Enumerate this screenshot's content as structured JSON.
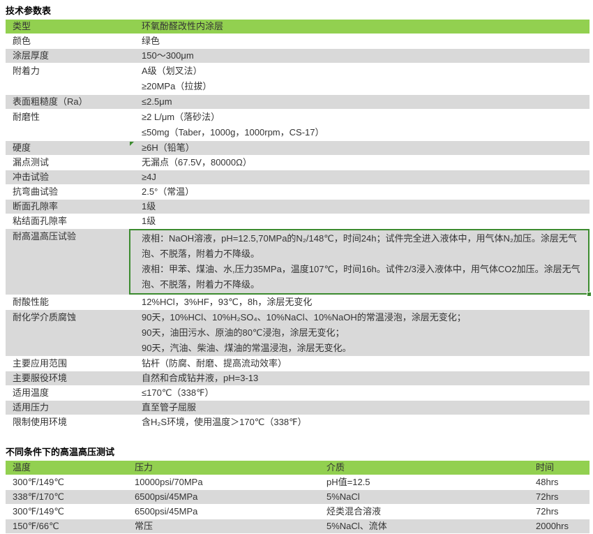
{
  "colors": {
    "header_green": "#92D050",
    "row_gray": "#D9D9D9",
    "selection_green": "#3C8B2F",
    "text": "#333333"
  },
  "table1": {
    "title": "技术参数表",
    "rows": [
      {
        "label": "类型",
        "values": [
          "环氧酚醛改性内涂层"
        ],
        "style": "green"
      },
      {
        "label": "颜色",
        "values": [
          "绿色"
        ]
      },
      {
        "label": "涂层厚度",
        "values": [
          "150～300μm"
        ]
      },
      {
        "label": "附着力",
        "values": [
          "A级（划叉法）",
          "≥20MPa（拉拔）"
        ]
      },
      {
        "label": "表面粗糙度（Ra）",
        "values": [
          "≤2.5μm"
        ]
      },
      {
        "label": "耐磨性",
        "values": [
          "≥2 L/μm（落砂法）",
          "≤50mg（Taber，1000g，1000rpm，CS-17）"
        ]
      },
      {
        "label": "硬度",
        "values": [
          "≥6H（铅笔）"
        ],
        "flag": true
      },
      {
        "label": "漏点测试",
        "values": [
          "无漏点（67.5V，80000Ω）"
        ]
      },
      {
        "label": "冲击试验",
        "values": [
          "≥4J"
        ]
      },
      {
        "label": "抗弯曲试验",
        "values": [
          "2.5°（常温）"
        ]
      },
      {
        "label": "断面孔隙率",
        "values": [
          "1级"
        ]
      },
      {
        "label": "粘结面孔隙率",
        "values": [
          "1级"
        ]
      },
      {
        "label": "耐高温高压试验",
        "values": [
          "液相：NaOH溶液，pH=12.5,70MPa的N₂/148℃，时间24h；试件完全进入液体中，用气体N₂加压。涂层无气泡、不脱落，附着力不降级。",
          "液相：甲苯、煤油、水,压力35MPa，温度107℃，时间16h。试件2/3浸入液体中，用气体CO2加压。涂层无气泡、不脱落，附着力不降级。"
        ],
        "selected": true
      },
      {
        "label": "耐酸性能",
        "values": [
          "12%HCl，3%HF，93℃，8h，涂层无变化"
        ]
      },
      {
        "label": "耐化学介质腐蚀",
        "values": [
          "90天，10%HCl、10%H₂SO₄、10%NaCl、10%NaOH的常温浸泡，涂层无变化；",
          "90天，油田污水、原油的80℃浸泡，涂层无变化；",
          "90天，汽油、柴油、煤油的常温浸泡，涂层无变化。"
        ]
      },
      {
        "label": "主要应用范围",
        "values": [
          "钻杆（防腐、耐磨、提高流动效率）"
        ]
      },
      {
        "label": "主要服役环境",
        "values": [
          "自然和合成钻井液，pH=3-13"
        ]
      },
      {
        "label": "适用温度",
        "values": [
          "≤170℃（338℉）"
        ]
      },
      {
        "label": "适用压力",
        "values": [
          "直至管子屈服"
        ]
      },
      {
        "label": "限制使用环境",
        "values": [
          "含H₂S环境，使用温度＞170℃（338℉）"
        ]
      }
    ]
  },
  "table2": {
    "title": "不同条件下的高温高压测试",
    "headers": [
      "温度",
      "压力",
      "介质",
      "时间"
    ],
    "rows": [
      [
        "300℉/149℃",
        "10000psi/70MPa",
        "pH值=12.5",
        "48hrs"
      ],
      [
        "338℉/170℃",
        "6500psi/45MPa",
        "5%NaCl",
        "72hrs"
      ],
      [
        "300℉/149℃",
        "6500psi/45MPa",
        "烃类混合溶液",
        "72hrs"
      ],
      [
        "150℉/66℃",
        "常压",
        "5%NaCl、流体",
        "2000hrs"
      ]
    ]
  }
}
